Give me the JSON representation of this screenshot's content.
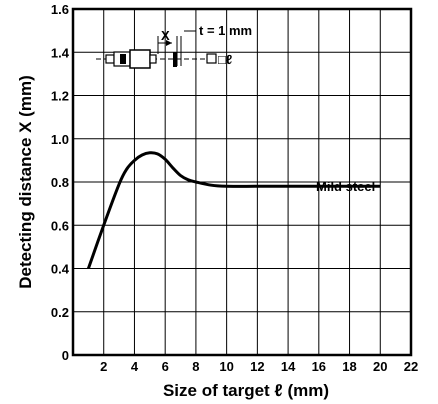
{
  "chart_data": {
    "type": "line",
    "title": "",
    "xlabel": "Size of target ℓ (mm)",
    "ylabel": "Detecting distance X (mm)",
    "xlim": [
      0,
      22
    ],
    "ylim": [
      0,
      1.6
    ],
    "grid": true,
    "x_ticks": [
      2,
      4,
      6,
      8,
      10,
      12,
      14,
      16,
      18,
      20,
      22
    ],
    "x_tick_labels": [
      "2",
      "4",
      "6",
      "8",
      "10",
      "12",
      "14",
      "16",
      "18",
      "20",
      "22"
    ],
    "y_ticks": [
      0,
      0.2,
      0.4,
      0.6,
      0.8,
      1.0,
      1.2,
      1.4,
      1.6
    ],
    "y_tick_labels": [
      "0",
      "0.2",
      "0.4",
      "0.6",
      "0.8",
      "1.0",
      "1.2",
      "1.4",
      "1.6"
    ],
    "series": [
      {
        "name": "Mild steel",
        "x": [
          1,
          2,
          3,
          3.5,
          4,
          4.5,
          5,
          5.5,
          6,
          6.5,
          7,
          7.5,
          8,
          9,
          10,
          12,
          14,
          16,
          18,
          20
        ],
        "y": [
          0.4,
          0.6,
          0.79,
          0.86,
          0.9,
          0.925,
          0.935,
          0.93,
          0.905,
          0.865,
          0.83,
          0.81,
          0.8,
          0.785,
          0.78,
          0.78,
          0.78,
          0.78,
          0.78,
          0.78
        ]
      }
    ],
    "annotations": {
      "series_label": "Mild steel",
      "diagram_x_label": "X",
      "diagram_thickness_label": "t = 1 mm",
      "diagram_target_label": "□ℓ"
    }
  }
}
